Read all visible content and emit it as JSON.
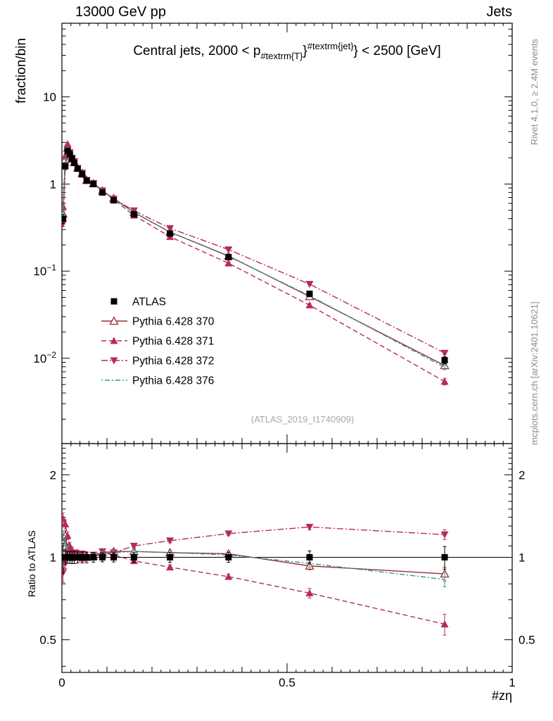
{
  "header": {
    "left": "13000 GeV pp",
    "right": "Jets"
  },
  "panel_title": {
    "p1": "Central jets, 2000 < p",
    "p2": "#textrm{T}",
    "p3": "}",
    "p4": "#textrm{jet}",
    "p5": "} < 2500 [GeV]"
  },
  "axes": {
    "xlabel": "#zη",
    "main_ylabel": "fraction/bin",
    "ratio_ylabel": "Ratio to ATLAS",
    "x_ticks": [
      {
        "v": 0,
        "label": "0"
      },
      {
        "v": 0.5,
        "label": "0.5"
      },
      {
        "v": 1,
        "label": "1"
      }
    ],
    "main_y_ticks": [
      {
        "v": 10,
        "base": "10",
        "exp": ""
      },
      {
        "v": 1,
        "base": "1",
        "exp": ""
      },
      {
        "v": 0.1,
        "base": "10",
        "exp": "−1"
      },
      {
        "v": 0.01,
        "base": "10",
        "exp": "−2"
      }
    ],
    "ratio_y_ticks": [
      {
        "v": 2,
        "label": "2"
      },
      {
        "v": 1,
        "label": "1"
      },
      {
        "v": 0.5,
        "label": "0.5"
      }
    ]
  },
  "watermark": "(ATLAS_2019_I1740909)",
  "side_notes": {
    "top": "Rivet 4.1.0, ≥ 2.4M events",
    "bottom": "mcplots.cern.ch [arXiv:2401.10621]"
  },
  "colors": {
    "atlas": "#000000",
    "pythia_370": "#9b2d33",
    "pythia_371": "#b82a5c",
    "pythia_372": "#b82a5c",
    "pythia_376": "#2e9b8a",
    "gray_notes": "#8c8c8c",
    "watermark_gray": "#a8a8a8"
  },
  "chart_data": {
    "type": "line",
    "title": "Central jets, 2000 < pT(jet) < 2500 [GeV]",
    "xlabel": "#zη",
    "xlim": [
      0,
      1
    ],
    "main_panel": {
      "ylabel": "fraction/bin",
      "scale": "log",
      "ylim": [
        0.00105,
        70
      ]
    },
    "ratio_panel": {
      "ylabel": "Ratio to ATLAS",
      "scale": "log",
      "ylim": [
        0.38,
        2.6
      ],
      "reference": 1
    },
    "legend_position": "middle-left",
    "grid": false,
    "x": [
      0.0025,
      0.0075,
      0.0125,
      0.0175,
      0.0225,
      0.0275,
      0.035,
      0.045,
      0.055,
      0.07,
      0.09,
      0.115,
      0.16,
      0.24,
      0.37,
      0.55,
      0.85
    ],
    "atlas": {
      "label": "ATLAS",
      "color": "#000000",
      "marker": "square-filled",
      "values": [
        0.4,
        1.6,
        2.4,
        2.2,
        1.95,
        1.75,
        1.5,
        1.3,
        1.1,
        1.0,
        0.8,
        0.65,
        0.45,
        0.27,
        0.145,
        0.055,
        0.0095
      ],
      "errors": [
        0.05,
        0.1,
        0.12,
        0.11,
        0.1,
        0.09,
        0.07,
        0.06,
        0.05,
        0.04,
        0.03,
        0.025,
        0.018,
        0.011,
        0.006,
        0.003,
        0.0009
      ]
    },
    "series": [
      {
        "label": "Pythia 6.428 370",
        "color": "#9b2d33",
        "line": "solid",
        "marker": "triangle-open",
        "ratio": [
          1.13,
          1.2,
          1.08,
          1.03,
          1.0,
          1.01,
          1.02,
          1.02,
          1.0,
          1.01,
          1.04,
          1.05,
          1.05,
          1.04,
          1.03,
          0.93,
          0.87
        ]
      },
      {
        "label": "Pythia 6.428 371",
        "color": "#b82a5c",
        "line": "dashed",
        "marker": "triangle-filled",
        "ratio": [
          1.38,
          1.32,
          1.2,
          1.1,
          1.06,
          1.02,
          1.04,
          0.99,
          1.02,
          1.0,
          1.04,
          1.02,
          0.97,
          0.92,
          0.85,
          0.74,
          0.57
        ]
      },
      {
        "label": "Pythia 6.428 372",
        "color": "#b82a5c",
        "line": "dashdot",
        "marker": "triangle-down-filled",
        "ratio": [
          0.88,
          0.96,
          1.03,
          1.05,
          1.02,
          1.04,
          1.01,
          1.03,
          1.0,
          1.02,
          1.05,
          1.04,
          1.1,
          1.15,
          1.22,
          1.29,
          1.21
        ]
      },
      {
        "label": "Pythia 6.428 376",
        "color": "#2e9b8a",
        "line": "dashdotdot",
        "marker": "none",
        "ratio": [
          1.18,
          1.15,
          1.06,
          1.02,
          1.0,
          1.0,
          1.01,
          1.01,
          1.0,
          1.01,
          1.03,
          1.04,
          1.05,
          1.04,
          1.02,
          0.95,
          0.83
        ]
      }
    ],
    "ratio_errors": [
      0.07,
      0.05,
      0.04,
      0.03,
      0.03,
      0.02,
      0.02,
      0.02,
      0.02,
      0.02,
      0.02,
      0.02,
      0.02,
      0.02,
      0.02,
      0.03,
      0.05
    ]
  }
}
